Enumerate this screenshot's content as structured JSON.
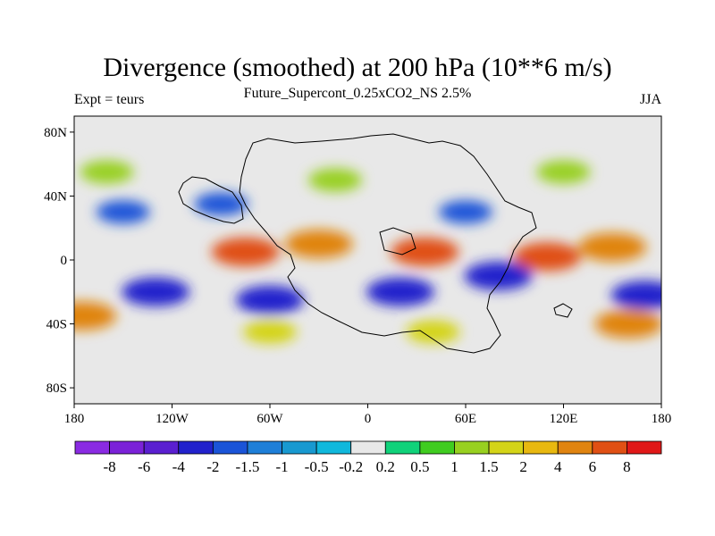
{
  "header": {
    "title": "Divergence (smoothed) at 200 hPa (10**6 m/s)",
    "subtitle": "Future_Supercont_0.25xCO2_NS 2.5%",
    "left_label": "Expt = teurs",
    "right_label": "JJA"
  },
  "chart_data": {
    "type": "heatmap",
    "title": "Divergence (smoothed) at 200 hPa (10**6 m/s)",
    "subtitle": "Future_Supercont_0.25xCO2_NS 2.5%",
    "xlim": [
      -180,
      180
    ],
    "ylim": [
      -90,
      90
    ],
    "x_ticks": [
      {
        "value": -180,
        "label": "180"
      },
      {
        "value": -120,
        "label": "120W"
      },
      {
        "value": -60,
        "label": "60W"
      },
      {
        "value": 0,
        "label": "0"
      },
      {
        "value": 60,
        "label": "60E"
      },
      {
        "value": 120,
        "label": "120E"
      },
      {
        "value": 180,
        "label": "180"
      }
    ],
    "y_ticks": [
      {
        "value": 80,
        "label": "80N"
      },
      {
        "value": 40,
        "label": "40N"
      },
      {
        "value": 0,
        "label": "0"
      },
      {
        "value": -40,
        "label": "40S"
      },
      {
        "value": -80,
        "label": "80S"
      }
    ],
    "colorbar": {
      "colors": [
        "#8a2be2",
        "#7b22d8",
        "#5a1fd0",
        "#2222cc",
        "#1a54d8",
        "#1e7fd8",
        "#1899d0",
        "#10b8dc",
        "#e8e8e8",
        "#10d27a",
        "#40cc20",
        "#98d020",
        "#d4d418",
        "#e8b810",
        "#e08410",
        "#e05014",
        "#e01818"
      ],
      "labels": [
        "-8",
        "-6",
        "-4",
        "-2",
        "-1.5",
        "-1",
        "-0.5",
        "-0.2",
        "0.2",
        "0.5",
        "1",
        "1.5",
        "2",
        "4",
        "6",
        "8"
      ]
    },
    "field_features": [
      {
        "lon": -75,
        "lat": 5,
        "value": 6
      },
      {
        "lon": 35,
        "lat": 5,
        "value": 6
      },
      {
        "lon": 110,
        "lat": 2,
        "value": 6
      },
      {
        "lon": -30,
        "lat": 10,
        "value": 4
      },
      {
        "lon": 150,
        "lat": 8,
        "value": 4
      },
      {
        "lon": -130,
        "lat": -20,
        "value": -4
      },
      {
        "lon": -60,
        "lat": -25,
        "value": -4
      },
      {
        "lon": 20,
        "lat": -20,
        "value": -4
      },
      {
        "lon": 80,
        "lat": -10,
        "value": -4
      },
      {
        "lon": 170,
        "lat": -22,
        "value": -4
      },
      {
        "lon": -90,
        "lat": 35,
        "value": -2
      },
      {
        "lon": 60,
        "lat": 30,
        "value": -2
      },
      {
        "lon": -150,
        "lat": 30,
        "value": -2
      },
      {
        "lon": -175,
        "lat": -35,
        "value": 4
      },
      {
        "lon": 160,
        "lat": -40,
        "value": 4
      },
      {
        "lon": -60,
        "lat": -45,
        "value": 1.5
      },
      {
        "lon": 40,
        "lat": -45,
        "value": 1.5
      },
      {
        "lon": -20,
        "lat": 50,
        "value": 1
      },
      {
        "lon": 120,
        "lat": 55,
        "value": 1
      },
      {
        "lon": -160,
        "lat": 55,
        "value": 1
      }
    ]
  }
}
